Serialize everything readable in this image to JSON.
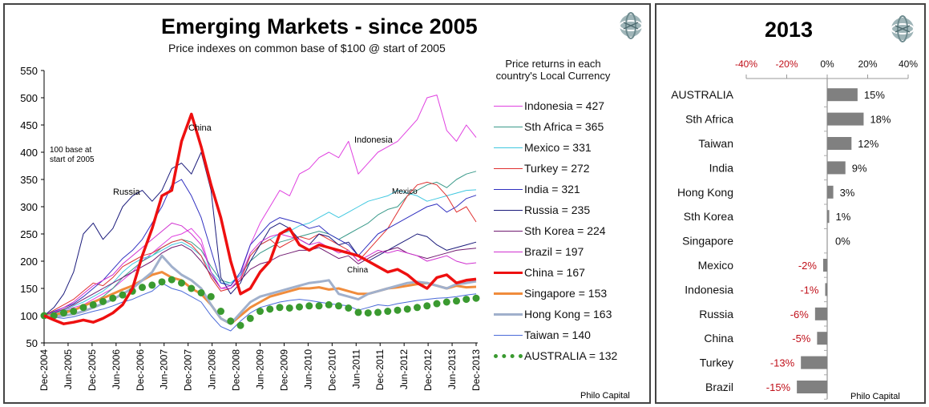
{
  "chart_data": [
    {
      "type": "line",
      "title": "Emerging Markets - since 2005",
      "subtitle": "Price indexes on common base of $100 @ start of 2005",
      "legend_title": "Price returns in each country's Local Currency",
      "legend_placement": "right",
      "annotation_base": "100 base at start of 2005",
      "series_labels": [
        "China",
        "Russia",
        "Indonesia",
        "Mexico",
        "China"
      ],
      "credit": "Philo Capital",
      "ylim": [
        50,
        550
      ],
      "yticks": [
        50,
        100,
        150,
        200,
        250,
        300,
        350,
        400,
        450,
        500,
        550
      ],
      "xticks": [
        "Dec-2004",
        "Jun-2005",
        "Dec-2005",
        "Jun-2006",
        "Dec-2006",
        "Jun-2007",
        "Dec-2007",
        "Jun-2008",
        "Dec-2008",
        "Jun-2009",
        "Dec-2009",
        "Jun-2010",
        "Dec-2010",
        "Jun-2011",
        "Dec-2011",
        "Jun-2012",
        "Dec-2012",
        "Jun-2013",
        "Dec-2013"
      ],
      "grid": false,
      "series": [
        {
          "name": "Indonesia",
          "legend": "Indonesia  =  427",
          "color": "#e040e0",
          "width": 1,
          "values": [
            100,
            105,
            110,
            115,
            120,
            130,
            140,
            150,
            165,
            180,
            200,
            215,
            230,
            245,
            250,
            260,
            240,
            180,
            150,
            155,
            175,
            230,
            270,
            300,
            330,
            320,
            360,
            370,
            390,
            400,
            390,
            420,
            360,
            380,
            400,
            410,
            420,
            440,
            460,
            500,
            505,
            440,
            420,
            450,
            427
          ]
        },
        {
          "name": "Sth Africa",
          "legend": "Sth Africa  =  365",
          "color": "#3a9a8a",
          "width": 1,
          "values": [
            100,
            103,
            108,
            112,
            118,
            125,
            135,
            150,
            170,
            185,
            200,
            210,
            225,
            235,
            240,
            235,
            220,
            190,
            165,
            160,
            175,
            200,
            215,
            225,
            235,
            240,
            245,
            250,
            255,
            250,
            240,
            250,
            260,
            270,
            285,
            295,
            300,
            320,
            330,
            340,
            345,
            335,
            350,
            360,
            365
          ]
        },
        {
          "name": "Mexico",
          "legend": "Mexico  =  331",
          "color": "#40c8e0",
          "width": 1,
          "values": [
            100,
            104,
            110,
            118,
            125,
            135,
            145,
            160,
            180,
            195,
            205,
            210,
            220,
            230,
            235,
            225,
            210,
            180,
            160,
            160,
            175,
            210,
            230,
            240,
            250,
            255,
            265,
            270,
            280,
            290,
            280,
            290,
            300,
            310,
            315,
            320,
            330,
            325,
            320,
            310,
            315,
            320,
            325,
            330,
            331
          ]
        },
        {
          "name": "Turkey",
          "legend": "Turkey  =  272",
          "color": "#e03030",
          "width": 1,
          "values": [
            100,
            110,
            120,
            130,
            145,
            160,
            155,
            170,
            190,
            200,
            210,
            215,
            225,
            235,
            240,
            230,
            210,
            170,
            145,
            150,
            165,
            210,
            230,
            240,
            225,
            235,
            245,
            240,
            250,
            240,
            230,
            220,
            200,
            220,
            240,
            260,
            290,
            320,
            340,
            345,
            340,
            320,
            290,
            300,
            272
          ]
        },
        {
          "name": "India",
          "legend": "India  =  321",
          "color": "#3030c0",
          "width": 1,
          "values": [
            100,
            108,
            115,
            122,
            135,
            150,
            165,
            185,
            205,
            220,
            240,
            270,
            300,
            340,
            350,
            320,
            280,
            220,
            160,
            155,
            180,
            230,
            250,
            270,
            280,
            275,
            270,
            260,
            265,
            250,
            240,
            230,
            210,
            230,
            250,
            260,
            270,
            280,
            290,
            300,
            305,
            290,
            300,
            315,
            321
          ]
        },
        {
          "name": "Russia",
          "legend": "Russia  =  235",
          "color": "#1a1a7a",
          "width": 1,
          "values": [
            100,
            115,
            140,
            180,
            250,
            270,
            240,
            260,
            300,
            320,
            330,
            310,
            330,
            370,
            380,
            360,
            400,
            330,
            170,
            140,
            160,
            200,
            230,
            260,
            270,
            260,
            240,
            230,
            250,
            245,
            230,
            235,
            210,
            200,
            210,
            220,
            230,
            240,
            250,
            245,
            230,
            220,
            225,
            230,
            235
          ]
        },
        {
          "name": "Sth Korea",
          "legend": "Sth Korea  =  224",
          "color": "#701a70",
          "width": 1,
          "values": [
            100,
            105,
            112,
            120,
            130,
            140,
            150,
            160,
            170,
            180,
            190,
            200,
            215,
            225,
            230,
            220,
            200,
            175,
            150,
            150,
            165,
            185,
            195,
            200,
            210,
            215,
            220,
            220,
            225,
            215,
            205,
            210,
            195,
            205,
            215,
            220,
            225,
            215,
            210,
            205,
            210,
            215,
            220,
            222,
            224
          ]
        },
        {
          "name": "Brazil",
          "legend": "Brazil  =  197",
          "color": "#d030d0",
          "width": 1,
          "values": [
            100,
            106,
            115,
            125,
            140,
            155,
            165,
            175,
            195,
            210,
            225,
            240,
            255,
            270,
            265,
            250,
            230,
            180,
            150,
            150,
            170,
            215,
            235,
            245,
            250,
            245,
            240,
            230,
            235,
            225,
            215,
            220,
            200,
            210,
            220,
            215,
            220,
            215,
            210,
            200,
            205,
            210,
            200,
            195,
            197
          ]
        },
        {
          "name": "China",
          "legend": "China  =  167",
          "color": "#ee1010",
          "width": 3.5,
          "values": [
            100,
            92,
            85,
            88,
            92,
            88,
            95,
            105,
            120,
            150,
            210,
            260,
            320,
            330,
            420,
            470,
            410,
            340,
            280,
            200,
            140,
            150,
            180,
            200,
            250,
            260,
            230,
            220,
            230,
            225,
            220,
            215,
            210,
            200,
            190,
            180,
            185,
            175,
            160,
            150,
            170,
            175,
            160,
            165,
            167
          ]
        },
        {
          "name": "Singapore",
          "legend": "Singapore  =  153",
          "color": "#f08c3c",
          "width": 3,
          "values": [
            100,
            102,
            105,
            110,
            118,
            125,
            132,
            140,
            148,
            155,
            165,
            175,
            180,
            170,
            165,
            150,
            140,
            120,
            95,
            85,
            100,
            115,
            125,
            135,
            140,
            145,
            150,
            150,
            152,
            148,
            150,
            145,
            140,
            140,
            145,
            150,
            152,
            155,
            158,
            160,
            155,
            150,
            155,
            152,
            153
          ]
        },
        {
          "name": "Hong Kong",
          "legend": "Hong Kong  =  163",
          "color": "#a0b0cc",
          "width": 3,
          "values": [
            100,
            98,
            100,
            103,
            108,
            115,
            122,
            130,
            140,
            150,
            165,
            180,
            210,
            190,
            175,
            165,
            150,
            120,
            95,
            85,
            105,
            125,
            135,
            140,
            145,
            150,
            155,
            160,
            162,
            165,
            140,
            135,
            130,
            140,
            145,
            150,
            155,
            160,
            162,
            160,
            155,
            150,
            158,
            160,
            163
          ]
        },
        {
          "name": "Taiwan",
          "legend": "Taiwan  =  140",
          "color": "#4a6ad8",
          "width": 1,
          "values": [
            100,
            97,
            95,
            98,
            103,
            108,
            112,
            118,
            125,
            130,
            138,
            145,
            160,
            150,
            145,
            135,
            125,
            100,
            80,
            72,
            90,
            105,
            115,
            120,
            125,
            128,
            130,
            128,
            125,
            122,
            120,
            118,
            110,
            115,
            120,
            118,
            122,
            125,
            128,
            130,
            132,
            133,
            135,
            138,
            140
          ]
        },
        {
          "name": "AUSTRALIA",
          "legend": "AUSTRALIA  =  132",
          "color": "#3a9a30",
          "style": "dots",
          "values": [
            100,
            100,
            105,
            108,
            115,
            120,
            126,
            132,
            138,
            145,
            152,
            156,
            162,
            166,
            160,
            150,
            142,
            135,
            108,
            90,
            82,
            95,
            108,
            112,
            115,
            114,
            116,
            118,
            118,
            120,
            118,
            114,
            106,
            105,
            106,
            108,
            110,
            112,
            115,
            118,
            122,
            125,
            127,
            130,
            132
          ]
        }
      ]
    },
    {
      "type": "bar",
      "orientation": "horizontal",
      "title": "2013",
      "credit": "Philo Capital",
      "xlim": [
        -40,
        40
      ],
      "xticks": [
        "-40%",
        "-20%",
        "0%",
        "20%",
        "40%"
      ],
      "categories": [
        "AUSTRALIA",
        "Sth Africa",
        "Taiwan",
        "India",
        "Hong Kong",
        "Sth Korea",
        "Singapore",
        "Mexico",
        "Indonesia",
        "Russia",
        "China",
        "Turkey",
        "Brazil"
      ],
      "values": [
        15,
        18,
        12,
        9,
        3,
        1,
        0,
        -2,
        -1,
        -6,
        -5,
        -13,
        -15
      ],
      "labels": [
        "15%",
        "18%",
        "12%",
        "9%",
        "3%",
        "1%",
        "0%",
        "-2%",
        "-1%",
        "-6%",
        "-5%",
        "-13%",
        "-15%"
      ],
      "bar_color": "#808080",
      "negative_label_color": "#c0101a",
      "positive_label_color": "#111111"
    }
  ]
}
